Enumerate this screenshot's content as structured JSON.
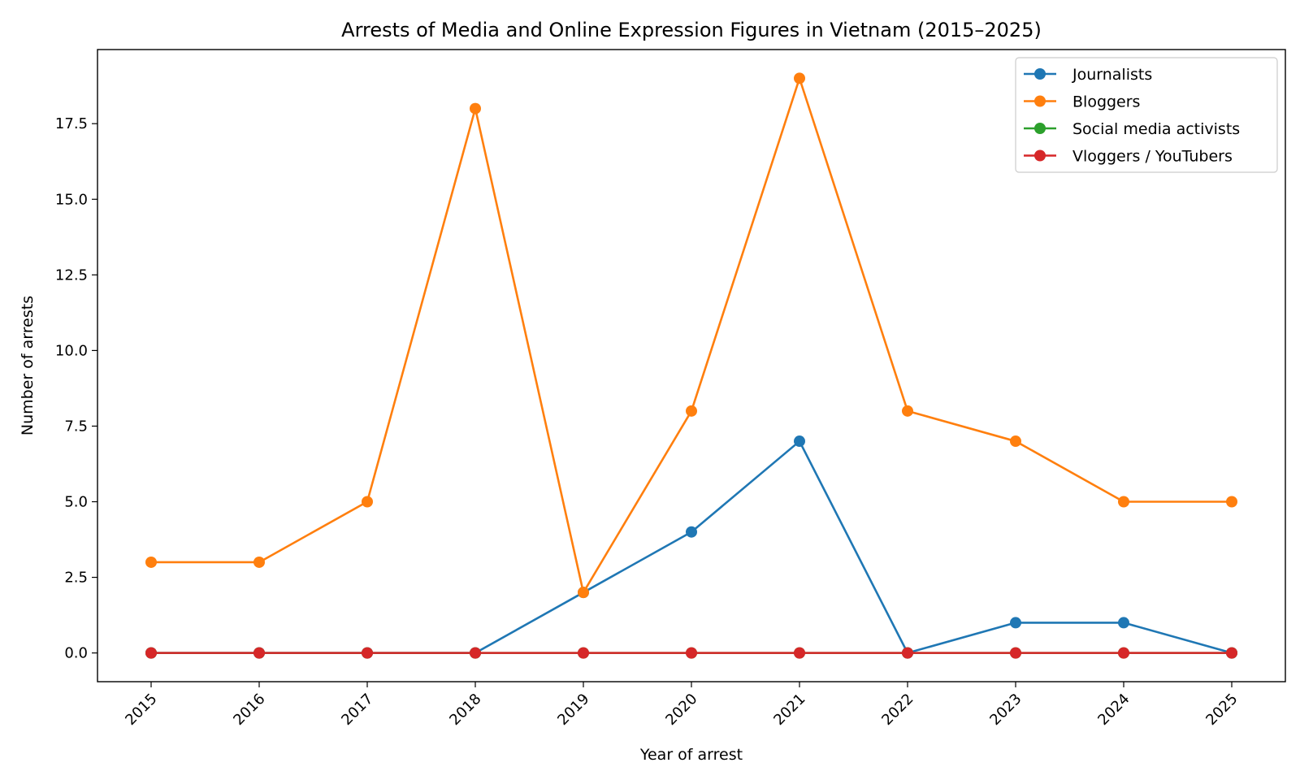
{
  "chart_data": {
    "type": "line",
    "title": "Arrests of Media and Online Expression Figures in Vietnam (2015–2025)",
    "xlabel": "Year of arrest",
    "ylabel": "Number of arrests",
    "categories": [
      "2015",
      "2016",
      "2017",
      "2018",
      "2019",
      "2020",
      "2021",
      "2022",
      "2023",
      "2024",
      "2025"
    ],
    "ylim": [
      -0.95,
      19.95
    ],
    "yticks": [
      0.0,
      2.5,
      5.0,
      7.5,
      10.0,
      12.5,
      15.0,
      17.5
    ],
    "ytick_labels": [
      "0.0",
      "2.5",
      "5.0",
      "7.5",
      "10.0",
      "12.5",
      "15.0",
      "17.5"
    ],
    "grid": false,
    "legend_position": "top-right",
    "series": [
      {
        "name": "Journalists",
        "color": "#1f77b4",
        "values": [
          0,
          0,
          0,
          0,
          2,
          4,
          7,
          0,
          1,
          1,
          0
        ]
      },
      {
        "name": "Bloggers",
        "color": "#ff7f0e",
        "values": [
          3,
          3,
          5,
          18,
          2,
          8,
          19,
          8,
          7,
          5,
          5
        ]
      },
      {
        "name": "Social media activists",
        "color": "#2ca02c",
        "values": [
          0,
          0,
          0,
          0,
          0,
          0,
          0,
          0,
          0,
          0,
          0
        ]
      },
      {
        "name": "Vloggers / YouTubers",
        "color": "#d62728",
        "values": [
          0,
          0,
          0,
          0,
          0,
          0,
          0,
          0,
          0,
          0,
          0
        ]
      }
    ]
  }
}
